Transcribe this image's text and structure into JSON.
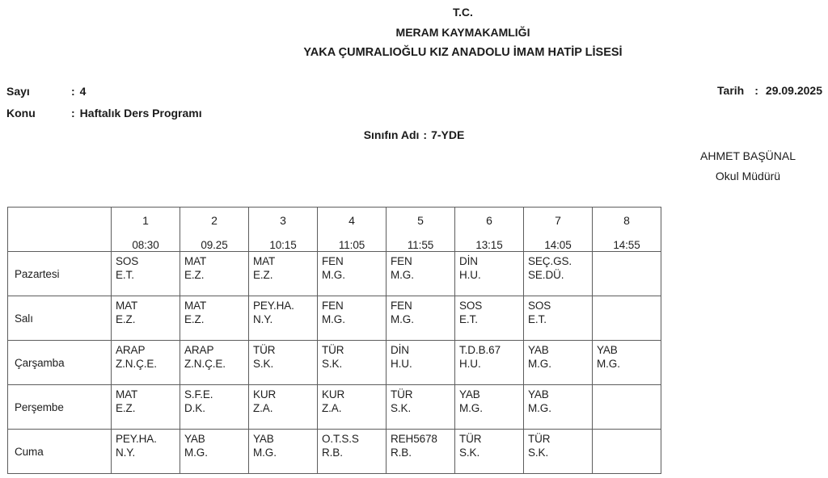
{
  "header": {
    "line1": "T.C.",
    "line2": "MERAM KAYMAKAMLIĞI",
    "line3": "YAKA ÇUMRALIOĞLU KIZ ANADOLU İMAM HATİP LİSESİ"
  },
  "meta": {
    "rows": [
      {
        "label": "Sayı",
        "sep": ":",
        "value": "4"
      },
      {
        "label": "Konu",
        "sep": ":",
        "value": "Haftalık Ders Programı"
      }
    ],
    "tarih": {
      "label": "Tarih",
      "sep": ":",
      "value": "29.09.2025"
    }
  },
  "class_info": {
    "label": "Sınıfın Adı",
    "sep": ":",
    "value": "7-YDE"
  },
  "signature": {
    "name": "AHMET BAŞÜNAL",
    "title": "Okul Müdürü"
  },
  "schedule": {
    "periods": [
      {
        "num": "1",
        "time": "08:30"
      },
      {
        "num": "2",
        "time": "09.25"
      },
      {
        "num": "3",
        "time": "10:15"
      },
      {
        "num": "4",
        "time": "11:05"
      },
      {
        "num": "5",
        "time": "11:55"
      },
      {
        "num": "6",
        "time": "13:15"
      },
      {
        "num": "7",
        "time": "14:05"
      },
      {
        "num": "8",
        "time": "14:55"
      }
    ],
    "days": [
      {
        "name": "Pazartesi",
        "lessons": [
          {
            "subject": "SOS",
            "teacher": "E.T."
          },
          {
            "subject": "MAT",
            "teacher": "E.Z."
          },
          {
            "subject": "MAT",
            "teacher": "E.Z."
          },
          {
            "subject": "FEN",
            "teacher": "M.G."
          },
          {
            "subject": "FEN",
            "teacher": "M.G."
          },
          {
            "subject": "DİN",
            "teacher": "H.U."
          },
          {
            "subject": "SEÇ.GS.",
            "teacher": "SE.DÜ."
          },
          {
            "subject": "",
            "teacher": ""
          }
        ]
      },
      {
        "name": "Salı",
        "lessons": [
          {
            "subject": "MAT",
            "teacher": "E.Z."
          },
          {
            "subject": "MAT",
            "teacher": "E.Z."
          },
          {
            "subject": "PEY.HA.",
            "teacher": "N.Y."
          },
          {
            "subject": "FEN",
            "teacher": "M.G."
          },
          {
            "subject": "FEN",
            "teacher": "M.G."
          },
          {
            "subject": "SOS",
            "teacher": "E.T."
          },
          {
            "subject": "SOS",
            "teacher": "E.T."
          },
          {
            "subject": "",
            "teacher": ""
          }
        ]
      },
      {
        "name": "Çarşamba",
        "lessons": [
          {
            "subject": "ARAP",
            "teacher": "Z.N.Ç.E."
          },
          {
            "subject": "ARAP",
            "teacher": "Z.N.Ç.E."
          },
          {
            "subject": "TÜR",
            "teacher": "S.K."
          },
          {
            "subject": "TÜR",
            "teacher": "S.K."
          },
          {
            "subject": "DİN",
            "teacher": "H.U."
          },
          {
            "subject": "T.D.B.67",
            "teacher": "H.U."
          },
          {
            "subject": "YAB",
            "teacher": "M.G."
          },
          {
            "subject": "YAB",
            "teacher": "M.G."
          }
        ]
      },
      {
        "name": "Perşembe",
        "lessons": [
          {
            "subject": "MAT",
            "teacher": "E.Z."
          },
          {
            "subject": "S.F.E.",
            "teacher": "D.K."
          },
          {
            "subject": "KUR",
            "teacher": "Z.A."
          },
          {
            "subject": "KUR",
            "teacher": "Z.A."
          },
          {
            "subject": "TÜR",
            "teacher": "S.K."
          },
          {
            "subject": "YAB",
            "teacher": "M.G."
          },
          {
            "subject": "YAB",
            "teacher": "M.G."
          },
          {
            "subject": "",
            "teacher": ""
          }
        ]
      },
      {
        "name": "Cuma",
        "lessons": [
          {
            "subject": "PEY.HA.",
            "teacher": "N.Y."
          },
          {
            "subject": "YAB",
            "teacher": "M.G."
          },
          {
            "subject": "YAB",
            "teacher": "M.G."
          },
          {
            "subject": "O.T.S.S",
            "teacher": "R.B."
          },
          {
            "subject": "REH5678",
            "teacher": "R.B."
          },
          {
            "subject": "TÜR",
            "teacher": "S.K."
          },
          {
            "subject": "TÜR",
            "teacher": "S.K."
          },
          {
            "subject": "",
            "teacher": ""
          }
        ]
      }
    ]
  }
}
